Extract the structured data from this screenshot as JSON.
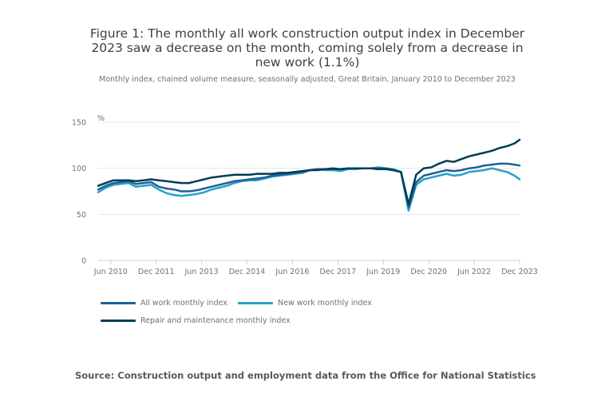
{
  "chart_data": {
    "type": "line",
    "title": "Figure 1: The monthly all work construction output index in December 2023 saw a decrease on the month, coming solely from a decrease in new work (1.1%)",
    "subtitle": "Monthly index, chained volume measure, seasonally adjusted, Great Britain, January 2010 to December 2023",
    "ylabel": "%",
    "xlabel": "",
    "ylim": [
      0,
      150
    ],
    "yticks": [
      "0",
      "50",
      "100",
      "150"
    ],
    "xticks": [
      "Jun 2010",
      "Dec 2011",
      "Jun 2013",
      "Dec 2014",
      "Jun 2016",
      "Dec 2017",
      "Jun 2019",
      "Dec 2020",
      "Jun 2022",
      "Dec 2023"
    ],
    "grid": true,
    "legend_position": "bottom-left",
    "x": [
      "Jan 2010",
      "Apr 2010",
      "Jul 2010",
      "Oct 2010",
      "Jan 2011",
      "Apr 2011",
      "Jul 2011",
      "Oct 2011",
      "Jan 2012",
      "Apr 2012",
      "Jul 2012",
      "Oct 2012",
      "Jan 2013",
      "Apr 2013",
      "Jul 2013",
      "Oct 2013",
      "Jan 2014",
      "Apr 2014",
      "Jul 2014",
      "Oct 2014",
      "Jan 2015",
      "Apr 2015",
      "Jul 2015",
      "Oct 2015",
      "Jan 2016",
      "Apr 2016",
      "Jul 2016",
      "Oct 2016",
      "Jan 2017",
      "Apr 2017",
      "Jul 2017",
      "Oct 2017",
      "Jan 2018",
      "Apr 2018",
      "Jul 2018",
      "Oct 2018",
      "Jan 2019",
      "Apr 2019",
      "Jul 2019",
      "Oct 2019",
      "Jan 2020",
      "Apr 2020",
      "Jul 2020",
      "Oct 2020",
      "Jan 2021",
      "Apr 2021",
      "Jul 2021",
      "Oct 2021",
      "Jan 2022",
      "Apr 2022",
      "Jul 2022",
      "Oct 2022",
      "Jan 2023",
      "Apr 2023",
      "Jul 2023",
      "Oct 2023",
      "Dec 2023"
    ],
    "series": [
      {
        "name": "All work monthly index",
        "color": "#206095",
        "values": [
          77,
          81,
          84,
          85,
          86,
          83,
          84,
          85,
          80,
          78,
          77,
          75,
          75,
          76,
          78,
          80,
          82,
          84,
          86,
          87,
          88,
          89,
          90,
          92,
          93,
          94,
          95,
          96,
          98,
          99,
          99,
          99,
          99,
          100,
          100,
          100,
          100,
          100,
          100,
          98,
          96,
          58,
          85,
          92,
          94,
          96,
          98,
          97,
          98,
          100,
          101,
          103,
          104,
          105,
          105,
          104,
          103
        ]
      },
      {
        "name": "New work monthly index",
        "color": "#27a0cc",
        "values": [
          74,
          79,
          82,
          83,
          84,
          80,
          81,
          82,
          77,
          73,
          71,
          70,
          71,
          72,
          74,
          77,
          79,
          81,
          84,
          86,
          87,
          87,
          89,
          91,
          92,
          93,
          94,
          95,
          98,
          99,
          98,
          98,
          97,
          99,
          99,
          100,
          100,
          101,
          100,
          99,
          96,
          54,
          82,
          88,
          90,
          92,
          94,
          92,
          93,
          96,
          97,
          98,
          100,
          98,
          96,
          92,
          88
        ]
      },
      {
        "name": "Repair and maintenance monthly index",
        "color": "#003c57",
        "values": [
          81,
          84,
          87,
          87,
          87,
          86,
          87,
          88,
          87,
          86,
          85,
          84,
          84,
          86,
          88,
          90,
          91,
          92,
          93,
          93,
          93,
          94,
          94,
          94,
          95,
          95,
          96,
          97,
          98,
          98,
          99,
          100,
          99,
          100,
          100,
          100,
          100,
          99,
          99,
          98,
          96,
          61,
          93,
          100,
          101,
          105,
          108,
          107,
          110,
          113,
          115,
          117,
          119,
          122,
          124,
          127,
          131
        ]
      }
    ]
  },
  "source_note": "Source: Construction output and employment data from the Office for National Statistics"
}
